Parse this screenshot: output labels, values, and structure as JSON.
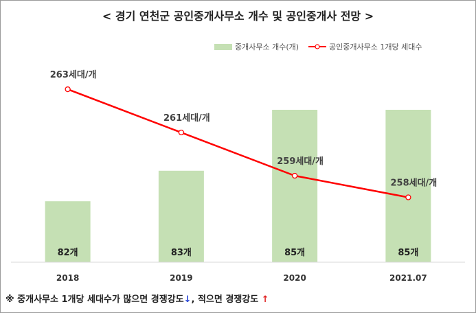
{
  "title": "< 경기 연천군 공인중개사무소 개수 및 공인중개사 전망 >",
  "legend": {
    "bar_label": "중개사무소 개수(개)",
    "line_label": "공인중개사무소 1개당 세대수"
  },
  "footnote": {
    "prefix": "※ 중개사무소 1개당 세대수가 많으면 경쟁강도",
    "down_arrow": "↓",
    "middle": ", 적으면 경쟁강도 ",
    "up_arrow": "↑"
  },
  "colors": {
    "bar": "#c5e0b4",
    "line": "#ff0000",
    "marker_fill": "#ffffff"
  },
  "chart_data": {
    "type": "bar",
    "categories": [
      "2018",
      "2019",
      "2020",
      "2021.07"
    ],
    "series": [
      {
        "name": "중개사무소 개수(개)",
        "type": "bar",
        "values": [
          82,
          83,
          85,
          85
        ],
        "labels": [
          "82개",
          "83개",
          "85개",
          "85개"
        ]
      },
      {
        "name": "공인중개사무소 1개당 세대수",
        "type": "line",
        "values": [
          263,
          261,
          259,
          258
        ],
        "labels": [
          "263세대/개",
          "261세대/개",
          "259세대/개",
          "258세대/개"
        ]
      }
    ],
    "y_bar_range": [
      80,
      85.9
    ],
    "y_line_range": [
      255,
      263.7
    ],
    "grid": false,
    "legend_position": "top-right"
  }
}
